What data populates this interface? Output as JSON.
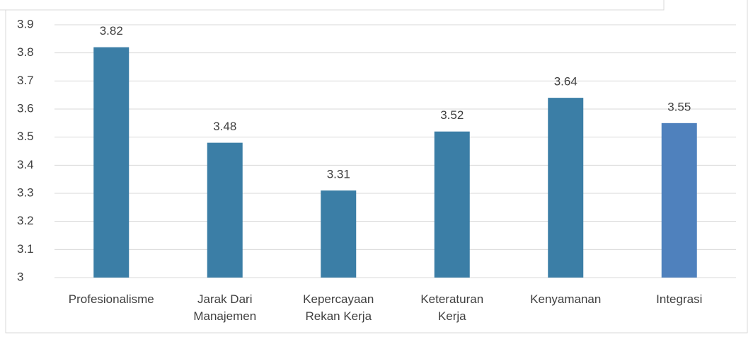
{
  "chart_data": {
    "type": "bar",
    "categories": [
      "Profesionalisme",
      "Jarak Dari Manajemen",
      "Kepercayaan Rekan Kerja",
      "Keteraturan Kerja",
      "Kenyamanan",
      "Integrasi"
    ],
    "values": [
      3.82,
      3.48,
      3.31,
      3.52,
      3.64,
      3.55
    ],
    "colors": [
      "#3b7ea6",
      "#3b7ea6",
      "#3b7ea6",
      "#3b7ea6",
      "#3b7ea6",
      "#4f81bd"
    ],
    "ylim": [
      3,
      3.9
    ],
    "yticks": [
      3,
      3.1,
      3.2,
      3.3,
      3.4,
      3.5,
      3.6,
      3.7,
      3.8,
      3.9
    ],
    "grid": true
  }
}
